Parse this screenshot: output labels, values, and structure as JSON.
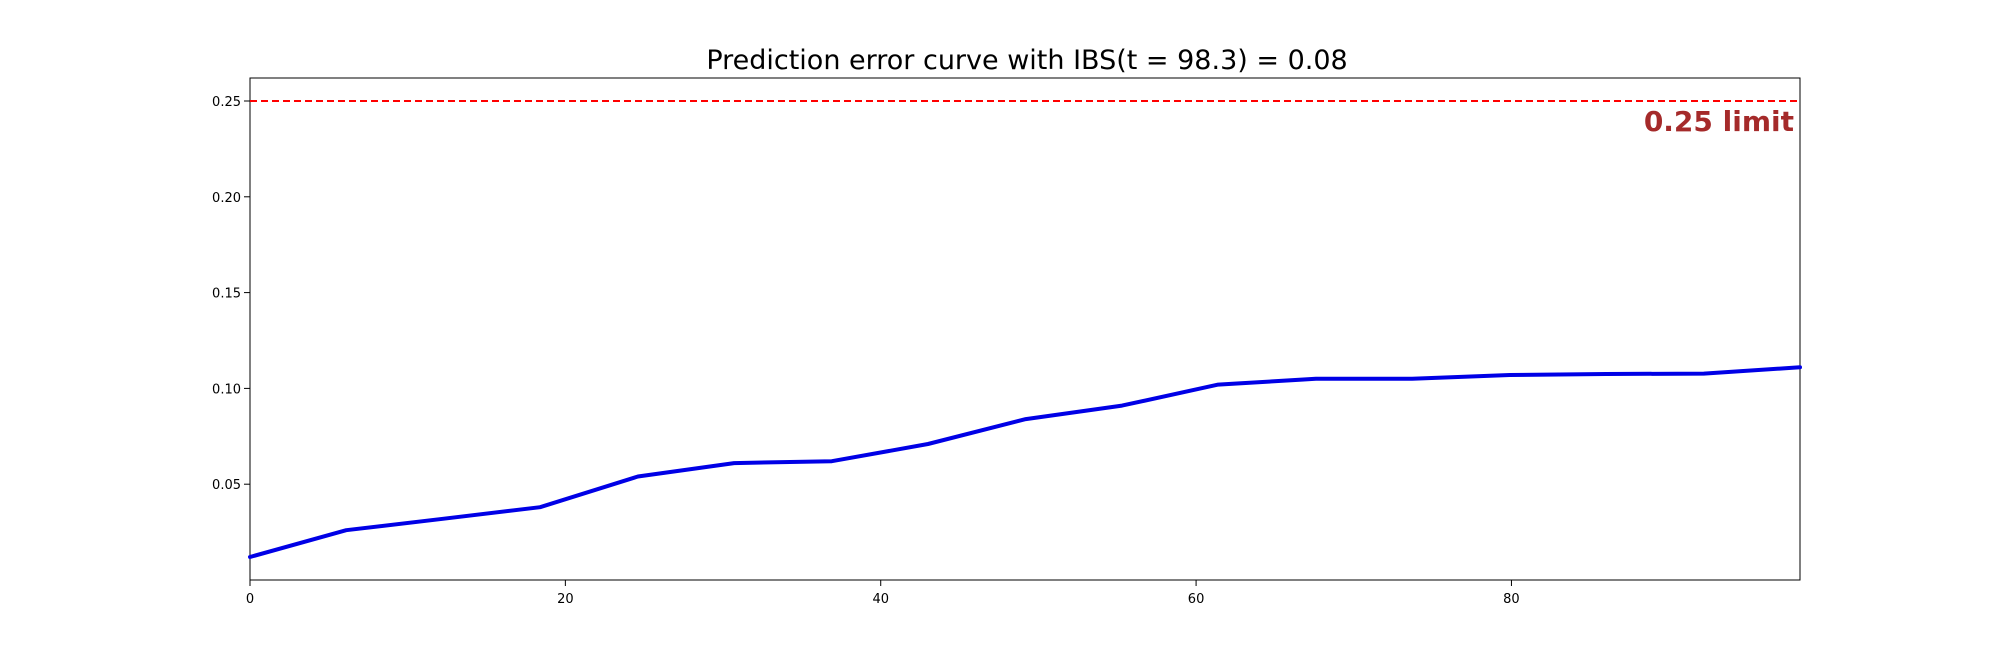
{
  "chart_data": {
    "type": "line",
    "title": "Prediction error curve with IBS(t = 98.3) = 0.08",
    "xlabel": "",
    "ylabel": "",
    "xlim": [
      0,
      98.3
    ],
    "ylim": [
      0,
      0.262
    ],
    "x_ticks": [
      0,
      20,
      40,
      60,
      80
    ],
    "x_tick_labels": [
      "0",
      "20",
      "40",
      "60",
      "80"
    ],
    "y_ticks": [
      0.05,
      0.1,
      0.15,
      0.2,
      0.25
    ],
    "y_tick_labels": [
      "0.05",
      "0.10",
      "0.15",
      "0.20",
      "0.25"
    ],
    "grid": false,
    "series": [
      {
        "color": "#0000e6",
        "x": [
          0,
          6.1,
          12.3,
          18.4,
          24.6,
          30.7,
          36.9,
          43.0,
          49.2,
          55.3,
          61.4,
          67.6,
          73.7,
          79.9,
          86.0,
          92.2,
          98.3
        ],
        "y": [
          0.012,
          0.026,
          0.032,
          0.038,
          0.054,
          0.061,
          0.062,
          0.071,
          0.084,
          0.091,
          0.102,
          0.105,
          0.105,
          0.107,
          0.1075,
          0.1077,
          0.111
        ]
      }
    ],
    "reference_line": {
      "y": 0.25,
      "color": "#ff0000",
      "style": "dashed"
    },
    "annotation": {
      "text": "0.25 limit",
      "color": "#a52a2a",
      "placement": "top-right"
    }
  }
}
